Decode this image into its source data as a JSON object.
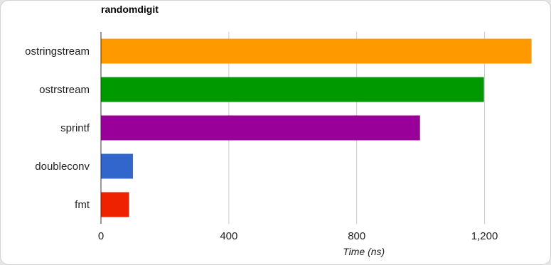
{
  "chart_data": {
    "type": "bar",
    "orientation": "horizontal",
    "title": "randomdigit",
    "xlabel": "Time (ns)",
    "ylabel": "",
    "categories": [
      "ostringstream",
      "ostrstream",
      "sprintf",
      "doubleconv",
      "fmt"
    ],
    "values": [
      1347,
      1198,
      998,
      100,
      88
    ],
    "colors": [
      "#ff9900",
      "#009900",
      "#990099",
      "#3366cc",
      "#ee2200"
    ],
    "xlim": [
      0,
      1350
    ],
    "xticks": [
      0,
      400,
      800,
      1200
    ],
    "xtick_labels": [
      "0",
      "400",
      "800",
      "1,200"
    ],
    "grid": true
  }
}
